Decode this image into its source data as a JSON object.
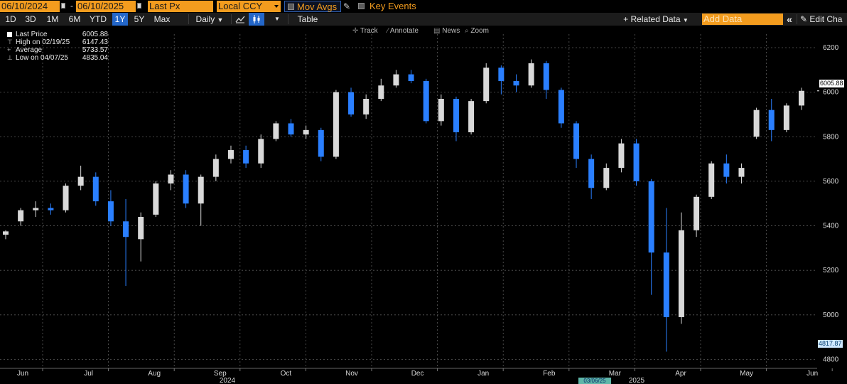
{
  "toolbar": {
    "start_date": "06/10/2024",
    "end_date": "06/10/2025",
    "field": "Last Px",
    "currency": "Local CCY",
    "mov_avgs_label": "Mov Avgs",
    "key_events_label": "Key Events",
    "periods": [
      "1D",
      "3D",
      "1M",
      "6M",
      "YTD",
      "1Y",
      "5Y",
      "Max"
    ],
    "active_period": "1Y",
    "frequency": "Daily",
    "frequency_arrow": "▼",
    "table_label": "Table",
    "related_data_label": "+ Related Data",
    "add_data_placeholder": "Add Data",
    "edit_chart_label": "Edit Cha",
    "collapse_label": "«"
  },
  "subtoolbar": {
    "track": "Track",
    "annotate": "Annotate",
    "news": "News",
    "zoom": "Zoom"
  },
  "legend": {
    "last_price_label": "Last Price",
    "last_price_value": "6005.88",
    "high_label": "High on 02/19/25",
    "high_value": "6147.43",
    "average_label": "Average",
    "average_value": "5733.57",
    "low_label": "Low on 04/07/25",
    "low_value": "4835.04"
  },
  "tags": {
    "last": "6005.88",
    "low": "4817.87",
    "date": "03/06/25"
  },
  "colors": {
    "accent": "#f39c1e",
    "up_candle": "#d9d9d9",
    "down_candle": "#2a7fff",
    "grid": "#5a5a5a",
    "active_tab": "#2467c9"
  },
  "chart_data": {
    "type": "candlestick",
    "title": "",
    "y_ticks": [
      4800,
      5000,
      5200,
      5400,
      5600,
      5800,
      6000,
      6200
    ],
    "ylim": [
      4760,
      6235
    ],
    "x_month_labels": [
      "Jun",
      "Jul",
      "Aug",
      "Sep",
      "Oct",
      "Nov",
      "Dec",
      "Jan",
      "Feb",
      "Mar",
      "Apr",
      "May",
      "Jun"
    ],
    "x_year_labels": [
      "2024",
      "2025"
    ],
    "grid": true,
    "legend_position": "top-left",
    "weeks": [
      {
        "o": 5360,
        "h": 5380,
        "l": 5340,
        "c": 5375
      },
      {
        "o": 5420,
        "h": 5480,
        "l": 5400,
        "c": 5470
      },
      {
        "o": 5470,
        "h": 5510,
        "l": 5440,
        "c": 5480
      },
      {
        "o": 5480,
        "h": 5500,
        "l": 5450,
        "c": 5470
      },
      {
        "o": 5470,
        "h": 5590,
        "l": 5460,
        "c": 5580
      },
      {
        "o": 5580,
        "h": 5670,
        "l": 5560,
        "c": 5620
      },
      {
        "o": 5620,
        "h": 5640,
        "l": 5490,
        "c": 5510
      },
      {
        "o": 5510,
        "h": 5560,
        "l": 5400,
        "c": 5420
      },
      {
        "o": 5420,
        "h": 5520,
        "l": 5130,
        "c": 5350
      },
      {
        "o": 5340,
        "h": 5460,
        "l": 5240,
        "c": 5440
      },
      {
        "o": 5450,
        "h": 5600,
        "l": 5440,
        "c": 5590
      },
      {
        "o": 5590,
        "h": 5650,
        "l": 5560,
        "c": 5630
      },
      {
        "o": 5630,
        "h": 5650,
        "l": 5480,
        "c": 5500
      },
      {
        "o": 5500,
        "h": 5630,
        "l": 5400,
        "c": 5620
      },
      {
        "o": 5620,
        "h": 5720,
        "l": 5600,
        "c": 5700
      },
      {
        "o": 5700,
        "h": 5760,
        "l": 5680,
        "c": 5740
      },
      {
        "o": 5740,
        "h": 5760,
        "l": 5660,
        "c": 5680
      },
      {
        "o": 5680,
        "h": 5810,
        "l": 5660,
        "c": 5790
      },
      {
        "o": 5790,
        "h": 5870,
        "l": 5780,
        "c": 5860
      },
      {
        "o": 5860,
        "h": 5880,
        "l": 5800,
        "c": 5810
      },
      {
        "o": 5810,
        "h": 5850,
        "l": 5790,
        "c": 5830
      },
      {
        "o": 5830,
        "h": 5840,
        "l": 5690,
        "c": 5710
      },
      {
        "o": 5710,
        "h": 6010,
        "l": 5700,
        "c": 6000
      },
      {
        "o": 6000,
        "h": 6020,
        "l": 5890,
        "c": 5900
      },
      {
        "o": 5900,
        "h": 5990,
        "l": 5880,
        "c": 5970
      },
      {
        "o": 5970,
        "h": 6060,
        "l": 5960,
        "c": 6030
      },
      {
        "o": 6030,
        "h": 6100,
        "l": 6020,
        "c": 6080
      },
      {
        "o": 6080,
        "h": 6100,
        "l": 6040,
        "c": 6050
      },
      {
        "o": 6050,
        "h": 6060,
        "l": 5860,
        "c": 5870
      },
      {
        "o": 5870,
        "h": 5990,
        "l": 5850,
        "c": 5970
      },
      {
        "o": 5970,
        "h": 5980,
        "l": 5780,
        "c": 5820
      },
      {
        "o": 5820,
        "h": 5970,
        "l": 5810,
        "c": 5960
      },
      {
        "o": 5960,
        "h": 6130,
        "l": 5950,
        "c": 6110
      },
      {
        "o": 6110,
        "h": 6120,
        "l": 5990,
        "c": 6050
      },
      {
        "o": 6050,
        "h": 6080,
        "l": 6000,
        "c": 6030
      },
      {
        "o": 6030,
        "h": 6147,
        "l": 6020,
        "c": 6130
      },
      {
        "o": 6130,
        "h": 6140,
        "l": 5970,
        "c": 6010
      },
      {
        "o": 6010,
        "h": 6020,
        "l": 5840,
        "c": 5860
      },
      {
        "o": 5860,
        "h": 5870,
        "l": 5660,
        "c": 5700
      },
      {
        "o": 5700,
        "h": 5720,
        "l": 5520,
        "c": 5570
      },
      {
        "o": 5570,
        "h": 5680,
        "l": 5560,
        "c": 5660
      },
      {
        "o": 5660,
        "h": 5790,
        "l": 5640,
        "c": 5770
      },
      {
        "o": 5770,
        "h": 5790,
        "l": 5580,
        "c": 5600
      },
      {
        "o": 5600,
        "h": 5610,
        "l": 5090,
        "c": 5280
      },
      {
        "o": 5280,
        "h": 5480,
        "l": 4835,
        "c": 4990
      },
      {
        "o": 4990,
        "h": 5460,
        "l": 4960,
        "c": 5380
      },
      {
        "o": 5380,
        "h": 5540,
        "l": 5350,
        "c": 5530
      },
      {
        "o": 5530,
        "h": 5690,
        "l": 5520,
        "c": 5680
      },
      {
        "o": 5680,
        "h": 5720,
        "l": 5590,
        "c": 5620
      },
      {
        "o": 5620,
        "h": 5680,
        "l": 5590,
        "c": 5660
      },
      {
        "o": 5800,
        "h": 5930,
        "l": 5790,
        "c": 5920
      },
      {
        "o": 5920,
        "h": 5970,
        "l": 5780,
        "c": 5830
      },
      {
        "o": 5830,
        "h": 5950,
        "l": 5820,
        "c": 5940
      },
      {
        "o": 5940,
        "h": 6020,
        "l": 5920,
        "c": 6006
      }
    ]
  }
}
